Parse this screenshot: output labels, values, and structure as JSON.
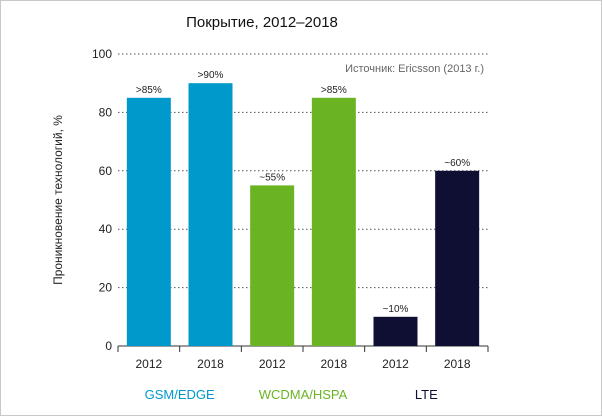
{
  "chart_data": {
    "type": "bar",
    "title": "Покрытие, 2012–2018",
    "ylabel": "Проникновение технологий, %",
    "xlabel": "",
    "ylim": [
      0,
      100
    ],
    "yticks": [
      0,
      20,
      40,
      60,
      80,
      100
    ],
    "grid": "horizontal-dotted",
    "source_note": "Источник: Ericsson (2013 г.)",
    "categories": [
      "2012",
      "2018",
      "2012",
      "2018",
      "2012",
      "2018"
    ],
    "values": [
      85,
      90,
      55,
      85,
      10,
      60
    ],
    "data_labels": [
      ">85%",
      ">90%",
      "~55%",
      ">85%",
      "~10%",
      "~60%"
    ],
    "bar_colors": [
      "#0099cc",
      "#0099cc",
      "#6ab423",
      "#6ab423",
      "#0f0f33",
      "#0f0f33"
    ],
    "groups": [
      {
        "label": "GSM/EDGE",
        "color": "#0099cc",
        "members": [
          0,
          1
        ]
      },
      {
        "label": "WCDMA/HSPA",
        "color": "#6ab423",
        "members": [
          2,
          3
        ]
      },
      {
        "label": "LTE",
        "color": "#0f0f33",
        "members": [
          4,
          5
        ]
      }
    ]
  }
}
